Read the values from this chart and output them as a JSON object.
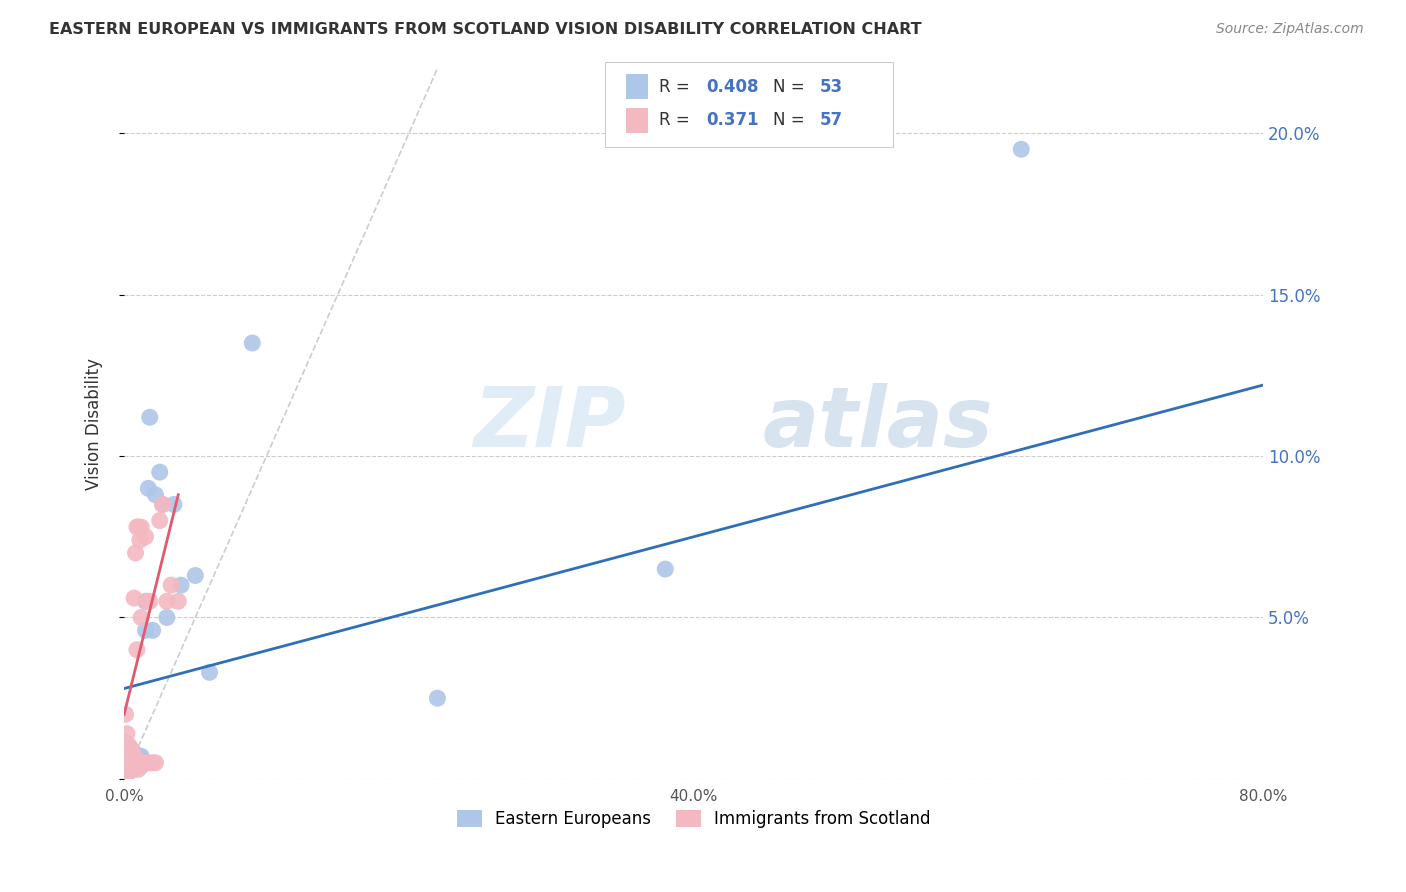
{
  "title": "EASTERN EUROPEAN VS IMMIGRANTS FROM SCOTLAND VISION DISABILITY CORRELATION CHART",
  "source": "Source: ZipAtlas.com",
  "xlabel": "",
  "ylabel": "Vision Disability",
  "xlim": [
    0,
    0.8
  ],
  "ylim": [
    0,
    0.22
  ],
  "xticks": [
    0.0,
    0.2,
    0.4,
    0.6,
    0.8
  ],
  "xticklabels": [
    "0.0%",
    "",
    "40.0%",
    "",
    "80.0%"
  ],
  "yticks_right": [
    0.0,
    0.05,
    0.1,
    0.15,
    0.2
  ],
  "yticklabels_right": [
    "",
    "5.0%",
    "10.0%",
    "15.0%",
    "20.0%"
  ],
  "blue_R": 0.408,
  "blue_N": 53,
  "pink_R": 0.371,
  "pink_N": 57,
  "blue_color": "#aec6e8",
  "pink_color": "#f4b8c1",
  "blue_line_color": "#2f6fba",
  "pink_line_color": "#e05a6e",
  "legend_label_blue": "Eastern Europeans",
  "legend_label_pink": "Immigrants from Scotland",
  "blue_scatter_x": [
    0.001,
    0.001,
    0.001,
    0.002,
    0.002,
    0.002,
    0.002,
    0.003,
    0.003,
    0.003,
    0.003,
    0.004,
    0.004,
    0.004,
    0.004,
    0.005,
    0.005,
    0.005,
    0.005,
    0.006,
    0.006,
    0.006,
    0.007,
    0.007,
    0.007,
    0.008,
    0.008,
    0.009,
    0.009,
    0.01,
    0.01,
    0.011,
    0.011,
    0.012,
    0.012,
    0.013,
    0.015,
    0.015,
    0.017,
    0.018,
    0.02,
    0.022,
    0.025,
    0.027,
    0.03,
    0.035,
    0.04,
    0.05,
    0.06,
    0.09,
    0.22,
    0.38,
    0.63
  ],
  "blue_scatter_y": [
    0.005,
    0.007,
    0.01,
    0.004,
    0.005,
    0.007,
    0.011,
    0.003,
    0.005,
    0.007,
    0.01,
    0.003,
    0.005,
    0.007,
    0.009,
    0.003,
    0.005,
    0.007,
    0.009,
    0.004,
    0.005,
    0.008,
    0.003,
    0.005,
    0.008,
    0.004,
    0.006,
    0.004,
    0.006,
    0.004,
    0.006,
    0.004,
    0.007,
    0.004,
    0.007,
    0.005,
    0.046,
    0.055,
    0.09,
    0.112,
    0.046,
    0.088,
    0.095,
    0.085,
    0.05,
    0.085,
    0.06,
    0.063,
    0.033,
    0.135,
    0.025,
    0.065,
    0.195
  ],
  "pink_scatter_x": [
    0.001,
    0.001,
    0.001,
    0.001,
    0.001,
    0.001,
    0.002,
    0.002,
    0.002,
    0.002,
    0.002,
    0.003,
    0.003,
    0.003,
    0.003,
    0.003,
    0.003,
    0.004,
    0.004,
    0.004,
    0.004,
    0.004,
    0.005,
    0.005,
    0.005,
    0.005,
    0.005,
    0.006,
    0.006,
    0.006,
    0.006,
    0.007,
    0.007,
    0.007,
    0.007,
    0.008,
    0.008,
    0.009,
    0.009,
    0.01,
    0.01,
    0.011,
    0.012,
    0.012,
    0.013,
    0.014,
    0.015,
    0.016,
    0.017,
    0.018,
    0.02,
    0.022,
    0.025,
    0.027,
    0.03,
    0.033,
    0.038
  ],
  "pink_scatter_y": [
    0.002,
    0.004,
    0.005,
    0.007,
    0.009,
    0.02,
    0.003,
    0.004,
    0.006,
    0.008,
    0.014,
    0.002,
    0.004,
    0.005,
    0.006,
    0.008,
    0.01,
    0.003,
    0.004,
    0.006,
    0.008,
    0.01,
    0.003,
    0.004,
    0.006,
    0.007,
    0.009,
    0.003,
    0.004,
    0.006,
    0.008,
    0.003,
    0.005,
    0.007,
    0.056,
    0.004,
    0.07,
    0.04,
    0.078,
    0.003,
    0.078,
    0.074,
    0.05,
    0.078,
    0.005,
    0.005,
    0.075,
    0.055,
    0.005,
    0.055,
    0.005,
    0.005,
    0.08,
    0.085,
    0.055,
    0.06,
    0.055
  ],
  "blue_line_x0": 0.0,
  "blue_line_x1": 0.8,
  "blue_line_y0": 0.028,
  "blue_line_y1": 0.122,
  "pink_line_x0": 0.0,
  "pink_line_x1": 0.038,
  "pink_line_y0": 0.02,
  "pink_line_y1": 0.088,
  "ref_line_x0": 0.0,
  "ref_line_x1": 0.22,
  "ref_line_y0": 0.0,
  "ref_line_y1": 0.22,
  "watermark_zip": "ZIP",
  "watermark_atlas": "atlas",
  "background_color": "#ffffff"
}
